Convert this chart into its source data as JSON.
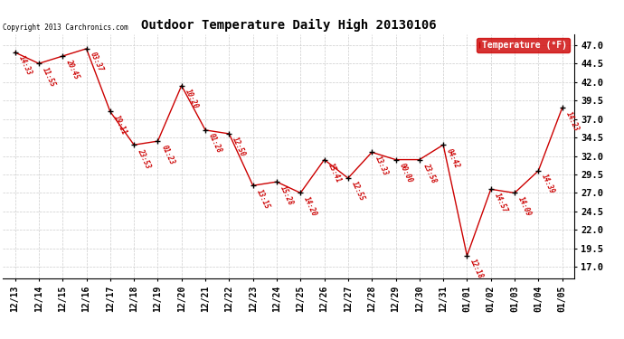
{
  "title": "Outdoor Temperature Daily High 20130106",
  "legend_label": "Temperature (°F)",
  "copyright_text": "Copyright 2013 Carchronics.com",
  "background_color": "#ffffff",
  "line_color": "#cc0000",
  "grid_color": "#cccccc",
  "y_ticks": [
    17.0,
    19.5,
    22.0,
    24.5,
    27.0,
    29.5,
    32.0,
    34.5,
    37.0,
    39.5,
    42.0,
    44.5,
    47.0
  ],
  "dates": [
    "12/13",
    "12/14",
    "12/15",
    "12/16",
    "12/17",
    "12/18",
    "12/19",
    "12/20",
    "12/21",
    "12/22",
    "12/23",
    "12/24",
    "12/25",
    "12/26",
    "12/27",
    "12/28",
    "12/29",
    "12/30",
    "12/31",
    "01/01",
    "01/02",
    "01/03",
    "01/04",
    "01/05"
  ],
  "temps": [
    46.0,
    44.5,
    45.5,
    46.5,
    38.0,
    33.5,
    34.0,
    41.5,
    35.5,
    35.0,
    28.0,
    28.5,
    27.0,
    31.5,
    29.0,
    32.5,
    31.5,
    31.5,
    33.5,
    18.5,
    27.5,
    27.0,
    30.0,
    38.5
  ],
  "annotations": [
    "14:33",
    "11:55",
    "20:45",
    "03:37",
    "19:11",
    "23:53",
    "01:23",
    "10:20",
    "01:28",
    "12:50",
    "13:15",
    "15:28",
    "14:20",
    "15:41",
    "12:55",
    "13:33",
    "00:00",
    "23:58",
    "04:42",
    "12:18",
    "14:57",
    "14:09",
    "14:39",
    "14:23"
  ],
  "ylim_min": 15.5,
  "ylim_max": 48.5,
  "title_fontsize": 10,
  "tick_fontsize": 7,
  "annot_fontsize": 5.5,
  "copyright_fontsize": 5.5,
  "legend_fontsize": 7
}
